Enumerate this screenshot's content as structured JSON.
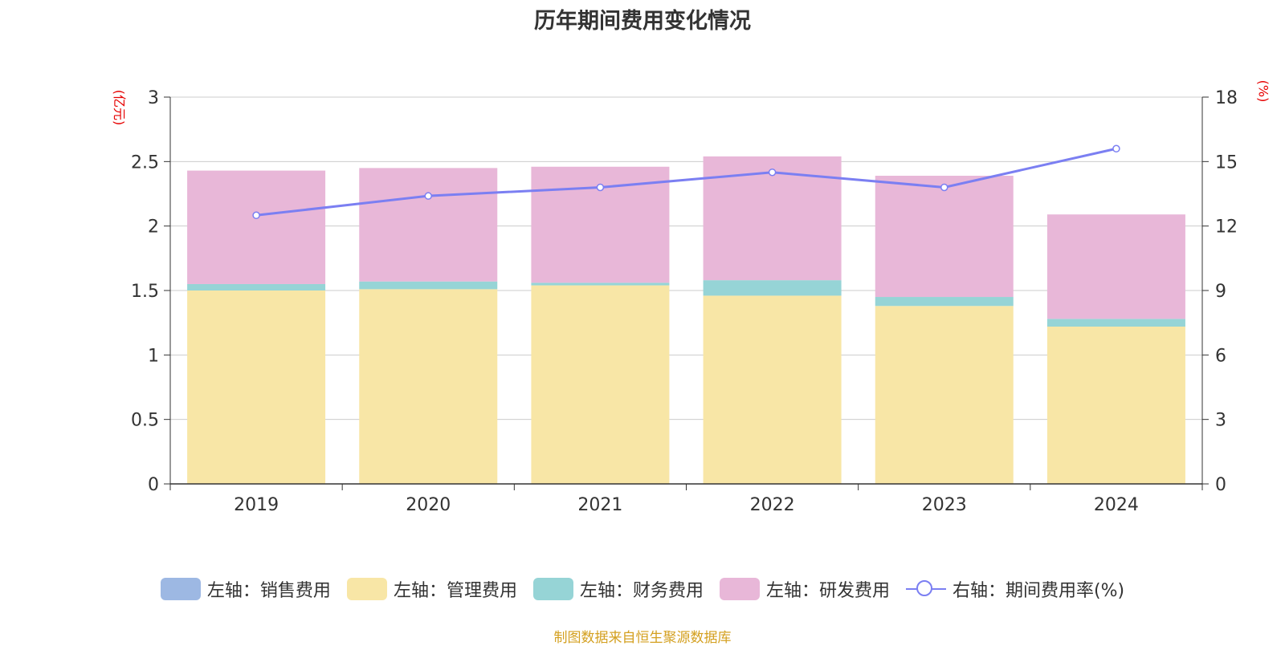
{
  "title": "历年期间费用变化情况",
  "units": {
    "left": "(亿元)",
    "right": "(%)"
  },
  "source": "制图数据来自恒生聚源数据库",
  "colors": {
    "sales": "#9db8e3",
    "admin": "#f8e6a6",
    "finance": "#96d4d6",
    "rnd": "#e8b7d8",
    "rate": "#7b7ff2",
    "grid": "#cccccc",
    "axis": "#333333",
    "unit": "#e60000",
    "source": "#d4a020"
  },
  "legend": [
    {
      "key": "sales",
      "label": "左轴：销售费用"
    },
    {
      "key": "admin",
      "label": "左轴：管理费用"
    },
    {
      "key": "finance",
      "label": "左轴：财务费用"
    },
    {
      "key": "rnd",
      "label": "左轴：研发费用"
    },
    {
      "key": "rate",
      "label": "右轴：期间费用率(%)"
    }
  ],
  "chart_data": {
    "type": "bar",
    "stacked": true,
    "title": "历年期间费用变化情况",
    "categories": [
      "2019",
      "2020",
      "2021",
      "2022",
      "2023",
      "2024"
    ],
    "series": [
      {
        "key": "sales",
        "name": "左轴：销售费用",
        "axis": "left",
        "values": [
          0,
          0,
          0,
          0,
          0,
          0
        ]
      },
      {
        "key": "admin",
        "name": "左轴：管理费用",
        "axis": "left",
        "values": [
          1.5,
          1.51,
          1.54,
          1.46,
          1.38,
          1.22
        ]
      },
      {
        "key": "finance",
        "name": "左轴：财务费用",
        "axis": "left",
        "values": [
          0.05,
          0.06,
          0.02,
          0.12,
          0.07,
          0.06
        ]
      },
      {
        "key": "rnd",
        "name": "左轴：研发费用",
        "axis": "left",
        "values": [
          0.88,
          0.88,
          0.9,
          0.96,
          0.94,
          0.81
        ]
      },
      {
        "key": "rate",
        "name": "右轴：期间费用率(%)",
        "axis": "right",
        "type": "line",
        "values": [
          12.5,
          13.4,
          13.8,
          14.5,
          13.8,
          15.6
        ]
      }
    ],
    "left_axis": {
      "label": "(亿元)",
      "min": 0,
      "max": 3,
      "ticks": [
        "0",
        "0.5",
        "1",
        "1.5",
        "2",
        "2.5",
        "3"
      ]
    },
    "right_axis": {
      "label": "(%)",
      "min": 0,
      "max": 18,
      "ticks": [
        "0",
        "3",
        "6",
        "9",
        "12",
        "15",
        "18"
      ]
    },
    "grid": true,
    "legend_position": "bottom"
  }
}
